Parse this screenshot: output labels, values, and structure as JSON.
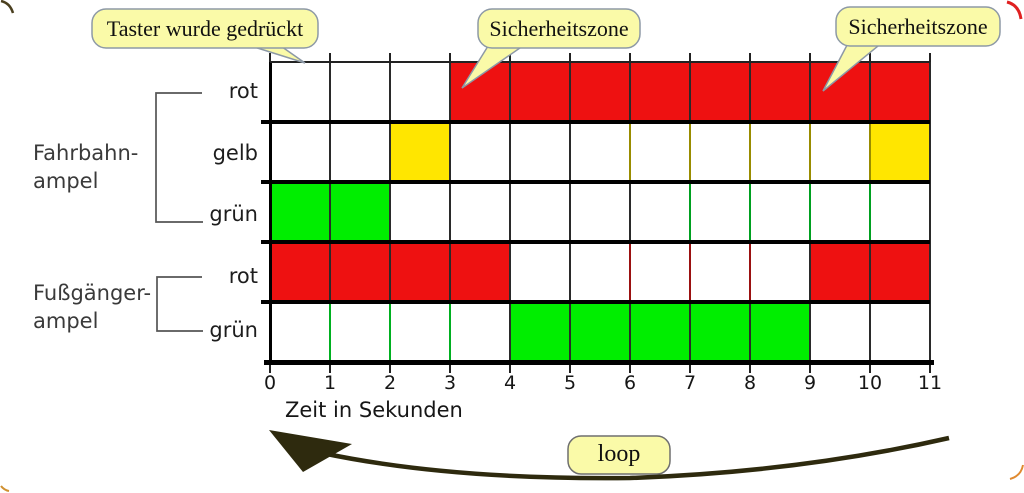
{
  "annotations": {
    "taster": "Taster wurde gedrückt",
    "sicherheitszone_1": "Sicherheitszone",
    "sicherheitszone_2": "Sicherheitszone",
    "loop": "loop"
  },
  "chart_data": {
    "type": "timing-grid",
    "xlabel": "Zeit in Sekunden",
    "x_range": [
      0,
      11
    ],
    "x_ticks": [
      "0",
      "1",
      "2",
      "3",
      "4",
      "5",
      "6",
      "7",
      "8",
      "9",
      "10",
      "11"
    ],
    "groups": [
      {
        "label_lines": [
          "Fahrbahn-",
          "ampel"
        ],
        "row_indexes": [
          0,
          1,
          2
        ]
      },
      {
        "label_lines": [
          "Fußgänger-",
          "ampel"
        ],
        "row_indexes": [
          3,
          4
        ]
      }
    ],
    "rows": [
      {
        "label": "rot",
        "group": "Fahrbahnampel",
        "segments": [
          {
            "start": 3,
            "end": 11,
            "state": "red"
          }
        ]
      },
      {
        "label": "gelb",
        "group": "Fahrbahnampel",
        "segments": [
          {
            "start": 2,
            "end": 3,
            "state": "yellow"
          },
          {
            "start": 10,
            "end": 11,
            "state": "yellow"
          }
        ]
      },
      {
        "label": "grün",
        "group": "Fahrbahnampel",
        "segments": [
          {
            "start": 0,
            "end": 2,
            "state": "green"
          }
        ]
      },
      {
        "label": "rot",
        "group": "Fußgängerampel",
        "segments": [
          {
            "start": 0,
            "end": 4,
            "state": "red"
          },
          {
            "start": 9,
            "end": 11,
            "state": "red"
          }
        ]
      },
      {
        "label": "grün",
        "group": "Fußgängerampel",
        "segments": [
          {
            "start": 4,
            "end": 9,
            "state": "green"
          }
        ]
      }
    ],
    "colors": {
      "red": "#ee1111",
      "yellow": "#ffe600",
      "green": "#00ee00"
    },
    "gridline_color_overrides": [
      {
        "row": 1,
        "cols": [
          6,
          7,
          8,
          9,
          10
        ],
        "color": "#998c00"
      },
      {
        "row": 2,
        "cols": [
          7,
          8,
          9,
          10
        ],
        "color": "#00a020"
      },
      {
        "row": 3,
        "cols": [
          6,
          7,
          8
        ],
        "color": "#9b1111"
      },
      {
        "row": 4,
        "cols": [
          1,
          2,
          3
        ],
        "color": "#00b020"
      }
    ],
    "callout_fill": "#fafaa8",
    "arrow_color": "#2e2a0e"
  }
}
